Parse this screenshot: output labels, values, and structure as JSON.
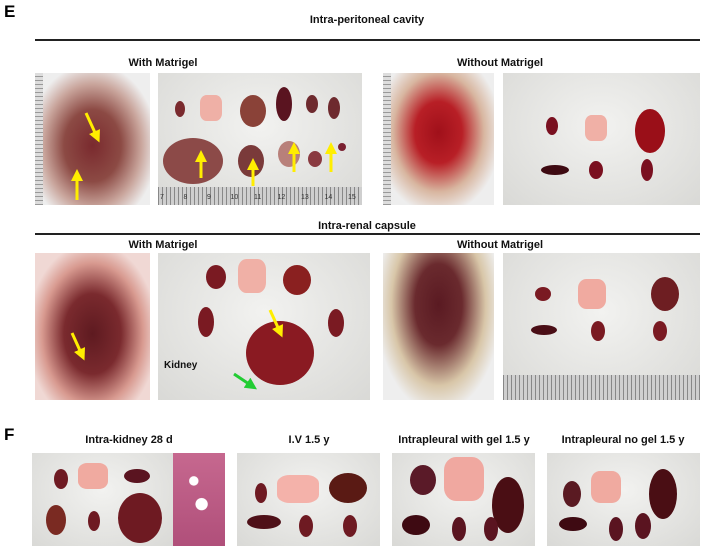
{
  "panel_e": {
    "letter": "E",
    "sections": [
      {
        "title": "Intra-peritoneal cavity",
        "left_label": "With Matrigel",
        "right_label": "Without Matrigel"
      },
      {
        "title": "Intra-renal capsule",
        "left_label": "With Matrigel",
        "right_label": "Without Matrigel",
        "annotation": "Kidney"
      }
    ],
    "ruler_ticks": [
      "7",
      "8",
      "9",
      "10",
      "11",
      "12",
      "13",
      "14",
      "15"
    ]
  },
  "panel_f": {
    "letter": "F",
    "labels": [
      "Intra-kidney 28 d",
      "I.V 1.5 y",
      "Intrapleural with gel 1.5 y",
      "Intrapleural no gel 1.5 y"
    ]
  },
  "colors": {
    "tumor_arrow": "#ffee00",
    "kidney_arrow": "#22cc33",
    "organ": "#6e1a22",
    "lung": "#f0a9a2"
  }
}
